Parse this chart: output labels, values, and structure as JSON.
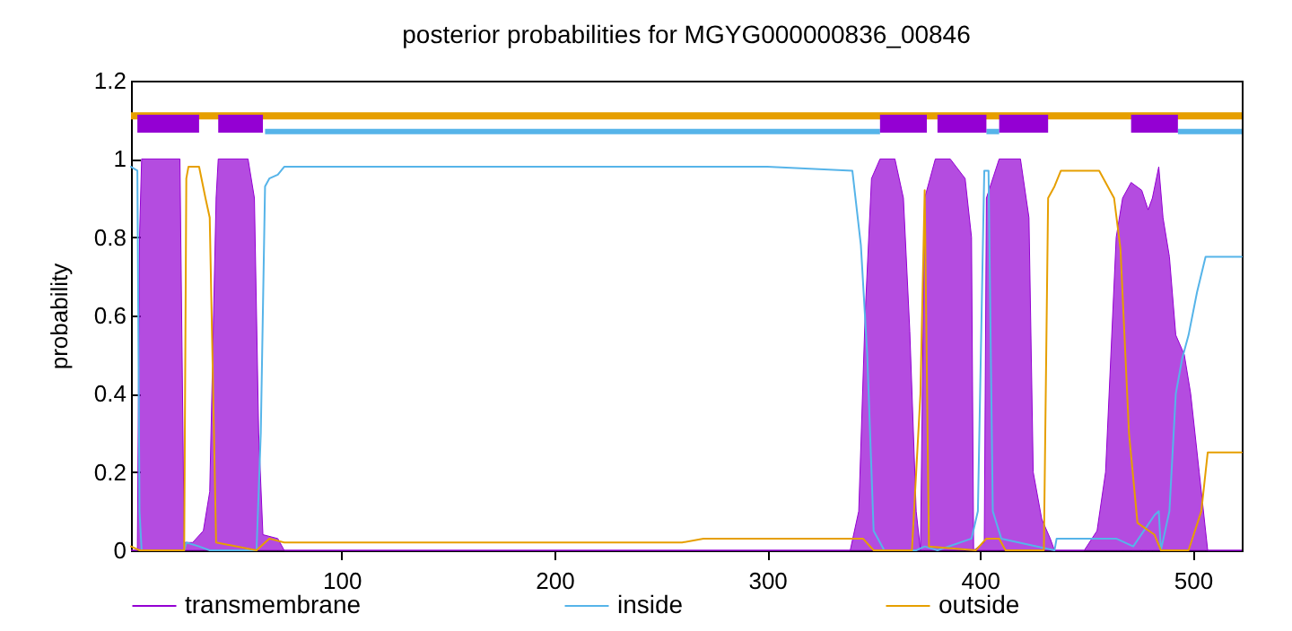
{
  "chart_data": {
    "type": "line",
    "title": "posterior probabilities for MGYG000000836_00846",
    "ylabel": "probability",
    "xlim": [
      1,
      523
    ],
    "ylim": [
      0,
      1.2
    ],
    "xticks": [
      100,
      200,
      300,
      400,
      500
    ],
    "yticks": [
      {
        "value": 0,
        "label": "0"
      },
      0.2,
      0.4,
      0.6,
      0.8,
      {
        "value": 1,
        "label": "1"
      },
      1.2
    ],
    "grid": false,
    "legend": "bottom",
    "marker": "none",
    "series": [
      {
        "name": "transmembrane",
        "type": "area",
        "color": "#9400d3",
        "x": [
          1,
          4,
          5,
          6,
          24,
          26,
          30,
          35,
          38,
          41,
          42,
          56,
          59,
          61,
          63,
          70,
          73,
          339,
          343,
          346,
          349,
          353,
          360,
          364,
          367,
          370,
          372,
          374,
          379,
          386,
          393,
          396,
          397,
          402,
          403,
          409,
          419,
          423,
          425,
          429,
          433,
          435,
          449,
          455,
          459,
          464,
          467,
          471,
          476,
          479,
          481,
          484,
          486,
          489,
          492,
          496,
          499,
          503,
          506,
          507,
          523
        ],
        "values": [
          0,
          0,
          0.8,
          1,
          1,
          0.02,
          0.02,
          0.05,
          0.15,
          0.9,
          1,
          1,
          0.9,
          0.3,
          0.04,
          0.03,
          0,
          0,
          0.1,
          0.6,
          0.95,
          1,
          1,
          0.9,
          0.56,
          0.1,
          0,
          0.9,
          1,
          1,
          0.95,
          0.8,
          0,
          0.02,
          0.9,
          1,
          1,
          0.85,
          0.2,
          0.08,
          0.03,
          0,
          0,
          0.05,
          0.2,
          0.8,
          0.9,
          0.94,
          0.92,
          0.87,
          0.9,
          0.98,
          0.85,
          0.75,
          0.55,
          0.5,
          0.4,
          0.2,
          0.05,
          0,
          0
        ]
      },
      {
        "name": "inside",
        "color": "#56b4e9",
        "x": [
          1,
          4,
          5,
          6,
          26,
          27,
          33,
          38,
          60,
          62,
          64,
          66,
          70,
          73,
          250,
          300,
          340,
          344,
          347,
          350,
          355,
          370,
          374,
          380,
          396,
          399,
          402,
          404,
          406,
          410,
          435,
          436,
          464,
          472,
          482,
          484,
          485,
          489,
          492,
          495,
          498,
          502,
          506,
          523
        ],
        "values": [
          0.98,
          0.97,
          0.1,
          0,
          0,
          0.02,
          0.01,
          0,
          0,
          0.3,
          0.93,
          0.95,
          0.96,
          0.98,
          0.98,
          0.98,
          0.97,
          0.78,
          0.5,
          0.05,
          0,
          0,
          0.01,
          0,
          0.03,
          0.1,
          0.97,
          0.97,
          0.1,
          0.03,
          0,
          0.03,
          0.03,
          0.01,
          0.09,
          0.1,
          0,
          0.1,
          0.4,
          0.49,
          0.55,
          0.66,
          0.75,
          0.75
        ]
      },
      {
        "name": "outside",
        "color": "#e69f00",
        "x": [
          1,
          5,
          26,
          27,
          28,
          33,
          36,
          38,
          40,
          41,
          60,
          64,
          66,
          73,
          230,
          260,
          270,
          345,
          350,
          368,
          372,
          374,
          376,
          398,
          403,
          409,
          412,
          430,
          432,
          435,
          438,
          456,
          463,
          466,
          470,
          474,
          482,
          485,
          498,
          504,
          507,
          523
        ],
        "values": [
          0.01,
          0,
          0,
          0.95,
          0.98,
          0.98,
          0.9,
          0.85,
          0.3,
          0.02,
          0,
          0.02,
          0.03,
          0.02,
          0.02,
          0.02,
          0.03,
          0.03,
          0,
          0,
          0.4,
          0.92,
          0.01,
          0,
          0.03,
          0.03,
          0,
          0,
          0.9,
          0.93,
          0.97,
          0.97,
          0.9,
          0.77,
          0.3,
          0.07,
          0.04,
          0,
          0,
          0.1,
          0.25,
          0.25
        ]
      },
      {
        "color": "#e69f00",
        "x": [
          1,
          523
        ],
        "values": [
          1.11,
          1.11
        ]
      },
      {
        "color": "#56b4e9",
        "x": [
          64,
          353,
          354,
          403,
          409,
          410,
          493,
          523
        ],
        "values": [
          1.07,
          1.07,
          null,
          1.07,
          1.07,
          null,
          1.07,
          1.07
        ]
      },
      {
        "color": "#9400d3",
        "x": [
          4,
          33,
          34,
          42,
          63,
          64,
          353,
          375,
          376,
          380,
          403,
          404,
          409,
          432,
          433,
          471,
          493
        ],
        "values": [
          1.09,
          1.09,
          null,
          1.09,
          1.09,
          null,
          1.09,
          1.09,
          null,
          1.09,
          1.09,
          null,
          1.09,
          1.09,
          null,
          1.09,
          1.09
        ]
      }
    ]
  }
}
